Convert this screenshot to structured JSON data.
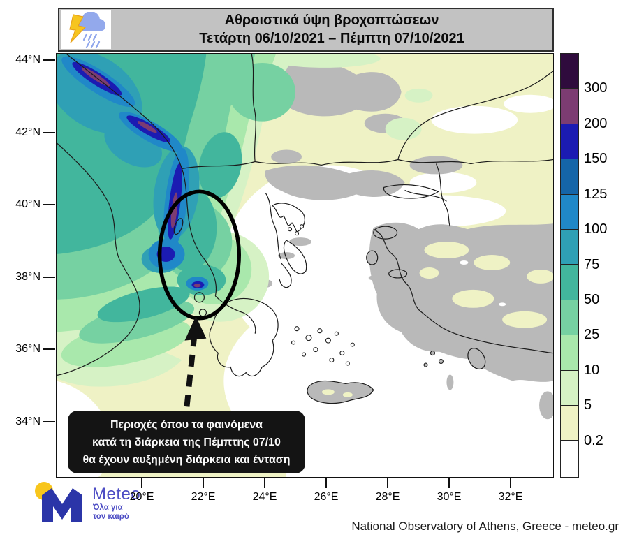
{
  "header": {
    "title_line1": "Αθροιστικά ύψη βροχοπτώσεων",
    "title_line2": "Τετάρτη 06/10/2021 – Πέμπτη 07/10/2021",
    "icon": "storm-cloud-lightning-rain"
  },
  "map": {
    "y_axis_labels": [
      "44°N",
      "42°N",
      "40°N",
      "38°N",
      "36°N",
      "34°N"
    ],
    "x_axis_labels": [
      "20°E",
      "22°E",
      "24°E",
      "26°E",
      "28°E",
      "30°E",
      "32°E"
    ]
  },
  "colorbar": {
    "boundary_labels": [
      "300",
      "200",
      "150",
      "125",
      "100",
      "75",
      "50",
      "25",
      "10",
      "5",
      "0.2"
    ],
    "segment_colors_top_to_bottom": [
      "#2f0b3d",
      "#7c3c72",
      "#1b1bb2",
      "#1565a8",
      "#2088c8",
      "#2fa0b5",
      "#42b69d",
      "#76d1a2",
      "#a9e8ac",
      "#d6f2c5",
      "#eff2c5",
      "#ffffff"
    ]
  },
  "annotation": {
    "lines": [
      "Περιοχές όπου τα φαινόμενα",
      "κατά τη διάρκεια της Πέμπτης  07/10",
      "θα έχουν αυξημένη διάρκεια και ένταση"
    ]
  },
  "logo": {
    "brand": "Meteo",
    "tagline_line1": "Όλα για",
    "tagline_line2": "τον καιρό"
  },
  "footer": {
    "attribution": "National Observatory of Athens, Greece - meteo.gr"
  },
  "chart_data": {
    "type": "heatmap",
    "title": "Αθροιστικά ύψη βροχοπτώσεων",
    "subtitle": "Τετάρτη 06/10/2021 – Πέμπτη 07/10/2021",
    "x_tick_labels": [
      "20°E",
      "22°E",
      "24°E",
      "26°E",
      "28°E",
      "30°E",
      "32°E"
    ],
    "y_tick_labels": [
      "44°N",
      "42°N",
      "40°N",
      "38°N",
      "36°N",
      "34°N"
    ],
    "colorbar_levels_mm": [
      0.2,
      5,
      10,
      25,
      50,
      75,
      100,
      125,
      150,
      200,
      300
    ],
    "colorbar_colors_low_to_high": [
      "#ffffff",
      "#eff2c5",
      "#d6f2c5",
      "#a9e8ac",
      "#76d1a2",
      "#42b69d",
      "#2fa0b5",
      "#2088c8",
      "#1565a8",
      "#1b1bb2",
      "#7c3c72",
      "#2f0b3d"
    ],
    "legend_position": "right",
    "no_rain_land_color": "#b9b9b9",
    "highlighted_region": "ellipse over western Greece with dashed arrow from caption box"
  }
}
